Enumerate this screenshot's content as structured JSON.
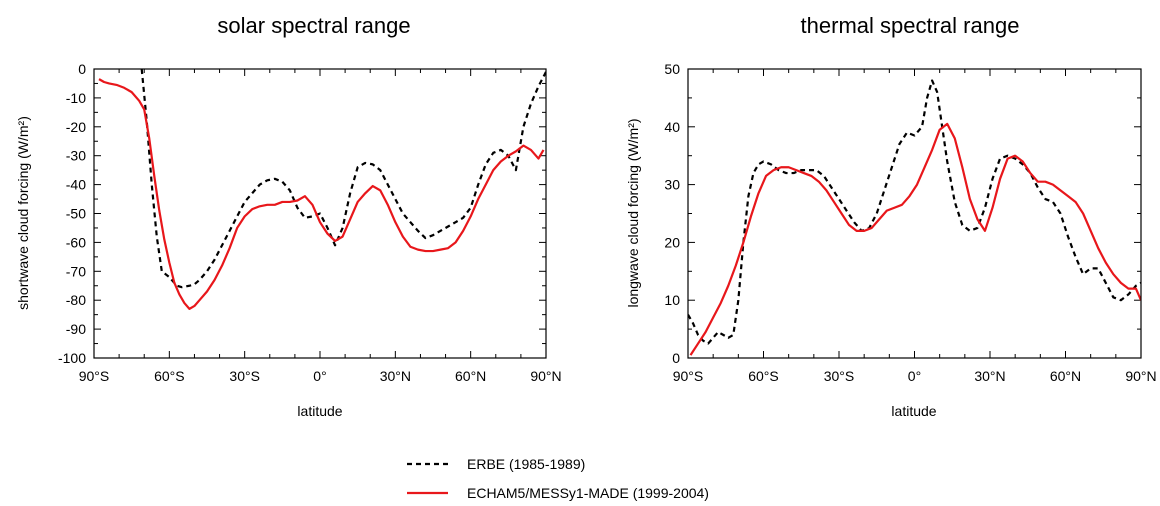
{
  "chart_data": [
    {
      "type": "line",
      "title": "solar spectral range",
      "xlabel": "latitude",
      "ylabel": "shortwave cloud forcing (W/m²)",
      "xlim": [
        -90,
        90
      ],
      "ylim": [
        -100,
        0
      ],
      "x_ticks": [
        -90,
        -60,
        -30,
        0,
        30,
        60,
        90
      ],
      "x_tick_labels": [
        "90°S",
        "60°S",
        "30°S",
        "0°",
        "30°N",
        "60°N",
        "90°N"
      ],
      "y_ticks": [
        0,
        -10,
        -20,
        -30,
        -40,
        -50,
        -60,
        -70,
        -80,
        -90,
        -100
      ],
      "y_tick_labels": [
        "0",
        "-10",
        "-20",
        "-30",
        "-40",
        "-50",
        "-60",
        "-70",
        "-80",
        "-90",
        "-100"
      ],
      "grid": false,
      "series": [
        {
          "name": "ERBE (1985-1989)",
          "x": [
            -71,
            -69,
            -67,
            -65,
            -63,
            -60,
            -57,
            -55,
            -52,
            -50,
            -48,
            -45,
            -42,
            -39,
            -36,
            -33,
            -30,
            -27,
            -24,
            -21,
            -18,
            -15,
            -12,
            -9,
            -6,
            -3,
            0,
            3,
            6,
            9,
            12,
            15,
            18,
            21,
            24,
            27,
            30,
            33,
            36,
            39,
            42,
            45,
            48,
            51,
            54,
            57,
            60,
            63,
            66,
            69,
            72,
            75,
            78,
            81,
            84,
            87,
            90
          ],
          "y": [
            0,
            -18,
            -40,
            -58,
            -70,
            -72,
            -75,
            -75.5,
            -75,
            -74.5,
            -73,
            -70,
            -66,
            -61,
            -56,
            -51,
            -46,
            -43,
            -40,
            -38.5,
            -38,
            -39,
            -42,
            -48,
            -51.5,
            -51,
            -50,
            -55,
            -61,
            -55,
            -43,
            -34,
            -32.5,
            -33,
            -35,
            -40,
            -45,
            -50,
            -53,
            -56,
            -58.5,
            -57.5,
            -56,
            -54.5,
            -53,
            -51.5,
            -48,
            -40,
            -33,
            -29,
            -28,
            -30,
            -35,
            -20,
            -12,
            -6,
            -1
          ]
        },
        {
          "name": "ECHAM5/MESSy1-MADE (1999-2004)",
          "x": [
            -88,
            -86,
            -84,
            -81,
            -78,
            -75,
            -72,
            -70,
            -68,
            -66,
            -64,
            -62,
            -60,
            -58,
            -56,
            -54,
            -52,
            -50,
            -48,
            -45,
            -42,
            -39,
            -36,
            -33,
            -30,
            -27,
            -24,
            -21,
            -18,
            -15,
            -12,
            -9,
            -6,
            -3,
            0,
            3,
            6,
            9,
            12,
            15,
            18,
            21,
            24,
            27,
            30,
            33,
            36,
            39,
            42,
            45,
            48,
            51,
            54,
            57,
            60,
            63,
            66,
            69,
            72,
            75,
            78,
            81,
            84,
            87,
            89
          ],
          "y": [
            -3.5,
            -4.5,
            -5,
            -5.5,
            -6.5,
            -8,
            -11,
            -14,
            -24,
            -37,
            -49,
            -59,
            -67,
            -74,
            -78,
            -81,
            -83,
            -82,
            -80,
            -77,
            -73,
            -68,
            -62,
            -55,
            -51,
            -48.5,
            -47.5,
            -47,
            -47,
            -46,
            -46,
            -45.5,
            -44,
            -47,
            -53,
            -57,
            -59.5,
            -58,
            -52,
            -46,
            -43,
            -40.5,
            -42,
            -47,
            -53,
            -58,
            -61.5,
            -62.5,
            -63,
            -63,
            -62.5,
            -62,
            -60,
            -56,
            -51,
            -45,
            -40,
            -35,
            -32,
            -30,
            -28.5,
            -26.5,
            -28,
            -31,
            -28
          ]
        }
      ]
    },
    {
      "type": "line",
      "title": "thermal spectral range",
      "xlabel": "latitude",
      "ylabel": "longwave cloud forcing (W/m²)",
      "xlim": [
        -90,
        90
      ],
      "ylim": [
        0,
        50
      ],
      "x_ticks": [
        -90,
        -60,
        -30,
        0,
        30,
        60,
        90
      ],
      "x_tick_labels": [
        "90°S",
        "60°S",
        "30°S",
        "0°",
        "30°N",
        "60°N",
        "90°N"
      ],
      "y_ticks": [
        0,
        10,
        20,
        30,
        40,
        50
      ],
      "y_tick_labels": [
        "0",
        "10",
        "20",
        "30",
        "40",
        "50"
      ],
      "grid": false,
      "series": [
        {
          "name": "ERBE (1985-1989)",
          "x": [
            -90,
            -88,
            -86,
            -84,
            -82,
            -80,
            -78,
            -76,
            -74,
            -72,
            -70,
            -68,
            -66,
            -64,
            -62,
            -60,
            -57,
            -54,
            -51,
            -48,
            -45,
            -42,
            -39,
            -36,
            -33,
            -30,
            -27,
            -24,
            -21,
            -18,
            -15,
            -12,
            -9,
            -6,
            -3,
            0,
            3,
            5,
            7,
            9,
            11,
            13,
            16,
            19,
            22,
            25,
            28,
            31,
            34,
            37,
            40,
            43,
            46,
            49,
            52,
            55,
            58,
            61,
            64,
            67,
            70,
            73,
            76,
            79,
            82,
            85,
            88,
            90
          ],
          "y": [
            7.5,
            6,
            4,
            3,
            2.5,
            3.5,
            4.5,
            4,
            3.5,
            4,
            10,
            20,
            28,
            32,
            33.5,
            34,
            33.5,
            32.5,
            32,
            32,
            32.5,
            32.5,
            32.5,
            31.5,
            29.5,
            27.5,
            25.5,
            23.5,
            22,
            22.5,
            25,
            29,
            33,
            37,
            39,
            38.5,
            40,
            45,
            48,
            46,
            40,
            34,
            27,
            23,
            22,
            22.5,
            26,
            31,
            34.5,
            35,
            34.5,
            33.5,
            32,
            29.5,
            27.5,
            27,
            25,
            21,
            17.5,
            14.5,
            15.5,
            15.5,
            13,
            10.5,
            10,
            11,
            12.5,
            13
          ]
        },
        {
          "name": "ECHAM5/MESSy1-MADE (1999-2004)",
          "x": [
            -89,
            -86,
            -83,
            -80,
            -77,
            -74,
            -71,
            -68,
            -65,
            -62,
            -59,
            -56,
            -53,
            -50,
            -47,
            -44,
            -41,
            -38,
            -35,
            -32,
            -29,
            -26,
            -23,
            -20,
            -17,
            -14,
            -11,
            -8,
            -5,
            -2,
            1,
            4,
            7,
            10,
            13,
            16,
            19,
            22,
            25,
            28,
            31,
            34,
            37,
            40,
            43,
            46,
            49,
            52,
            55,
            58,
            61,
            64,
            67,
            70,
            73,
            76,
            79,
            82,
            85,
            88,
            90
          ],
          "y": [
            0.5,
            2.5,
            4.5,
            7,
            9.5,
            12.5,
            16,
            20,
            24.5,
            28.5,
            31.5,
            32.5,
            33,
            33,
            32.5,
            32,
            31.5,
            30.5,
            29,
            27,
            25,
            23,
            22,
            22,
            22.5,
            24,
            25.5,
            26,
            26.5,
            28,
            30,
            33,
            36,
            39.5,
            40.5,
            38,
            33,
            27.5,
            24,
            22,
            26,
            31,
            34.5,
            35,
            34,
            32,
            30.5,
            30.5,
            30,
            29,
            28,
            27,
            25,
            22,
            19,
            16.5,
            14.5,
            13,
            12,
            12,
            10
          ]
        }
      ]
    }
  ],
  "legend": {
    "entries": [
      {
        "label": "ERBE (1985-1989)",
        "style": "dashed",
        "color": "#000000"
      },
      {
        "label": "ECHAM5/MESSy1-MADE (1999-2004)",
        "style": "solid",
        "color": "#e8171b"
      }
    ]
  },
  "colors": {
    "erbe": "#000000",
    "echam": "#e8171b"
  }
}
